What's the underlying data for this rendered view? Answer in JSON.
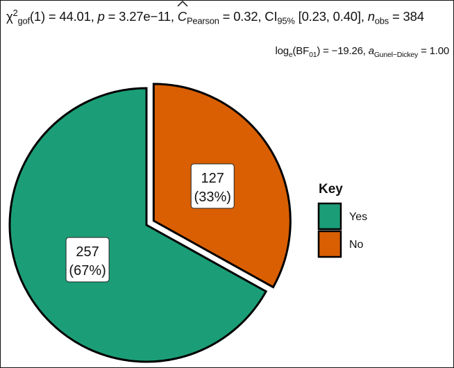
{
  "chart_data": {
    "type": "pie",
    "subtitle": {
      "stat_symbol": "χ",
      "stat_sup": "2",
      "stat_sub": "gof",
      "df": "(1)",
      "stat_value": "= 44.01, ",
      "p_label": "p",
      "p_value": " = 3.27e−11, ",
      "effsize_symbol": "C",
      "effsize_sub": "Pearson",
      "effsize_value": " = 0.32, CI",
      "ci_sub": "95%",
      "ci_value": " [0.23, 0.40], ",
      "n_label": "n",
      "n_sub": "obs",
      "n_value": " = 384"
    },
    "caption": {
      "bf_prefix": "log",
      "bf_log_sub": "e",
      "bf_open": "(BF",
      "bf_sub": "01",
      "bf_value": ") = −19.26, ",
      "a_label": "a",
      "a_sub": "Gunel−Dickey",
      "a_value": " = 1.00"
    },
    "legend_title": "Key",
    "legend_position": "right",
    "slices": [
      {
        "label": "Yes",
        "count": 257,
        "count_label": "257",
        "percent_label": "(67%)",
        "color": "#1b9e77"
      },
      {
        "label": "No",
        "count": 127,
        "count_label": "127",
        "percent_label": "(33%)",
        "color": "#d95f02"
      }
    ]
  }
}
